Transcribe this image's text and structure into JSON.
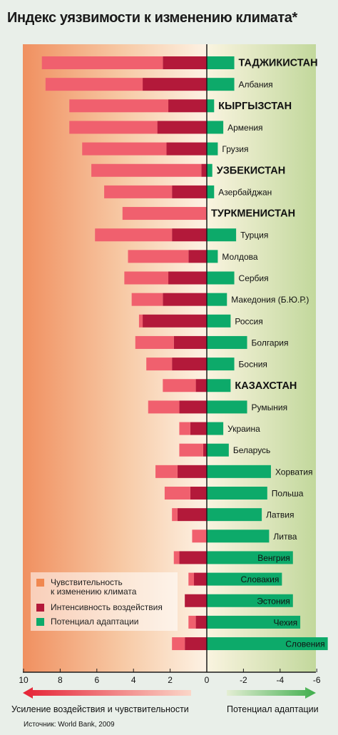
{
  "title": "Индекс уязвимости к изменению климата*",
  "source": "Источник: World Bank, 2009",
  "left_caption": "Усиление воздействия и чувствительности",
  "right_caption": "Потенциал адаптации",
  "colors": {
    "sensitivity": "#f0606e",
    "exposure": "#b3193a",
    "adaptation": "#0daa6a",
    "panel_left": "#f09060",
    "panel_right": "#c6dba0",
    "axis": "#1a1a1a"
  },
  "legend": [
    {
      "label": "Чувствительность\nк изменению климата",
      "color": "#f08850"
    },
    {
      "label": "Интенсивность воздействия",
      "color": "#b3193a"
    },
    {
      "label": "Потенциал адаптации",
      "color": "#0daa6a"
    }
  ],
  "chart_data": {
    "type": "bar",
    "orientation": "horizontal",
    "stacked": true,
    "xlim": [
      10,
      -6
    ],
    "x_ticks": [
      "10",
      "8",
      "6",
      "4",
      "2",
      "0",
      "-2",
      "-4",
      "-6"
    ],
    "x_tick_values": [
      10,
      8,
      6,
      4,
      2,
      0,
      -2,
      -4,
      -6
    ],
    "grid": false,
    "legend_position": "bottom-left",
    "categories": [
      "ТАДЖИКИСТАН",
      "Албания",
      "КЫРГЫЗСТАН",
      "Армения",
      "Грузия",
      "УЗБЕКИСТАН",
      "Азербайджан",
      "ТУРКМЕНИСТАН",
      "Турция",
      "Молдова",
      "Сербия",
      "Македония (Б.Ю.Р.)",
      "Россия",
      "Болгария",
      "Босния",
      "КАЗАХСТАН",
      "Румыния",
      "Украина",
      "Беларусь",
      "Хорватия",
      "Польша",
      "Латвия",
      "Литва",
      "Венгрия",
      "Словакия",
      "Эстония",
      "Чехия",
      "Словения"
    ],
    "bold_categories": [
      "ТАДЖИКИСТАН",
      "КЫРГЫЗСТАН",
      "УЗБЕКИСТАН",
      "ТУРКМЕНИСТАН",
      "КАЗАХСТАН"
    ],
    "inside_label_categories": [
      "Венгрия",
      "Словакия",
      "Эстония",
      "Чехия",
      "Словения"
    ],
    "series": [
      {
        "name": "Интенсивность воздействия",
        "values": [
          2.4,
          3.5,
          2.1,
          2.7,
          2.2,
          0.3,
          1.9,
          0,
          1.9,
          1.0,
          2.1,
          2.4,
          3.5,
          1.8,
          1.9,
          0.6,
          1.5,
          0.9,
          0.2,
          1.6,
          0.9,
          1.6,
          0,
          1.5,
          0.7,
          1.2,
          0.6,
          1.2
        ]
      },
      {
        "name": "Чувствительность к изменению климата",
        "values": [
          6.6,
          5.3,
          5.4,
          4.8,
          4.6,
          6.0,
          3.7,
          4.6,
          4.2,
          3.3,
          2.4,
          1.7,
          0.2,
          2.1,
          1.4,
          1.8,
          1.7,
          0.6,
          1.3,
          1.2,
          1.4,
          0.3,
          0.8,
          0.3,
          0.3,
          0,
          0.4,
          0.7
        ]
      },
      {
        "name": "Потенциал адаптации",
        "values": [
          -1.5,
          -1.5,
          -0.4,
          -0.9,
          -0.6,
          -0.3,
          -0.4,
          0,
          -1.6,
          -0.6,
          -1.5,
          -1.1,
          -1.3,
          -2.2,
          -1.5,
          -1.3,
          -2.2,
          -0.9,
          -1.2,
          -3.5,
          -3.3,
          -3.0,
          -3.4,
          -4.7,
          -4.1,
          -4.7,
          -5.1,
          -6.6
        ]
      }
    ]
  }
}
